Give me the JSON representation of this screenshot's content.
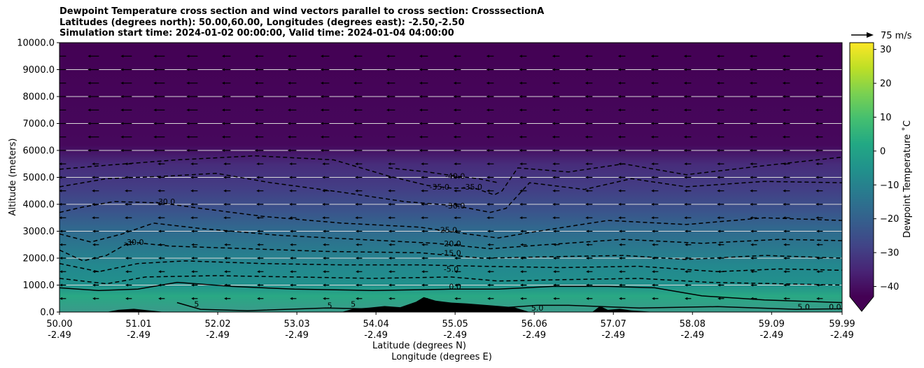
{
  "chart_data": {
    "type": "heatmap",
    "title_lines": [
      "Dewpoint Temperature cross section and wind vectors parallel to cross section: CrosssectionA",
      "Latitudes (degrees north): 50.00,60.00, Longitudes (degrees east): -2.50,-2.50",
      "Simulation start time: 2024-01-02 00:00:00, Valid time: 2024-01-04 04:00:00"
    ],
    "ylabel": "Altitude (meters)",
    "xlabel": "Latitude (degrees N)",
    "xlabel2": "Longitude (degrees E)",
    "ylim": [
      0,
      10000
    ],
    "y_ticks": [
      "0.0",
      "1000.0",
      "2000.0",
      "3000.0",
      "4000.0",
      "5000.0",
      "6000.0",
      "7000.0",
      "8000.0",
      "9000.0",
      "10000.0"
    ],
    "x_ticks": [
      {
        "lat": "50.00",
        "lon": "-2.49"
      },
      {
        "lat": "51.01",
        "lon": "-2.49"
      },
      {
        "lat": "52.02",
        "lon": "-2.49"
      },
      {
        "lat": "53.03",
        "lon": "-2.49"
      },
      {
        "lat": "54.04",
        "lon": "-2.49"
      },
      {
        "lat": "55.05",
        "lon": "-2.49"
      },
      {
        "lat": "56.06",
        "lon": "-2.49"
      },
      {
        "lat": "57.07",
        "lon": "-2.49"
      },
      {
        "lat": "58.08",
        "lon": "-2.49"
      },
      {
        "lat": "59.09",
        "lon": "-2.49"
      },
      {
        "lat": "59.99",
        "lon": "-2.49"
      }
    ],
    "grid": "horizontal",
    "colorbar": {
      "label": "Dewpoint Temperature $^\\circ$C",
      "label_display": "Dewpoint Temperature ˚C",
      "range": [
        -43,
        32
      ],
      "ticks": [
        "30",
        "20",
        "10",
        "0",
        "−10",
        "−20",
        "−30",
        "−40"
      ],
      "colormap": "viridis",
      "extend": "min"
    },
    "quiver_key": "75 m/s",
    "contour_labels": [
      {
        "text": "-40.0",
        "lat": 55.05,
        "alt": 5050
      },
      {
        "text": "-35.0",
        "lat": 54.85,
        "alt": 4650
      },
      {
        "text": "-35.0",
        "lat": 55.27,
        "alt": 4650
      },
      {
        "text": "-30.0",
        "lat": 51.35,
        "alt": 4100
      },
      {
        "text": "-30.0",
        "lat": 55.05,
        "alt": 3950
      },
      {
        "text": "-25.0",
        "lat": 54.95,
        "alt": 3050
      },
      {
        "text": "-30.0",
        "lat": 50.95,
        "alt": 2600
      },
      {
        "text": "-20.0",
        "lat": 55.0,
        "alt": 2550
      },
      {
        "text": "-15.0",
        "lat": 55.0,
        "alt": 2200
      },
      {
        "text": "-5.0",
        "lat": 55.0,
        "alt": 1600
      },
      {
        "text": "0.0",
        "lat": 55.05,
        "alt": 950
      },
      {
        "text": "5",
        "lat": 51.75,
        "alt": 300
      },
      {
        "text": "5",
        "lat": 53.45,
        "alt": 250
      },
      {
        "text": "5",
        "lat": 53.75,
        "alt": 300
      },
      {
        "text": "5.0",
        "lat": 56.1,
        "alt": 150
      },
      {
        "text": "5.0",
        "lat": 59.5,
        "alt": 200
      },
      {
        "text": "0.0",
        "lat": 59.9,
        "alt": 200
      }
    ],
    "contour_levels": [
      {
        "level": -40,
        "style": "dashed",
        "points": [
          [
            54.2,
            5350
          ],
          [
            54.7,
            5200
          ],
          [
            55.05,
            5050
          ],
          [
            55.35,
            4950
          ],
          [
            55.6,
            4800
          ]
        ]
      },
      {
        "level": -35,
        "style": "dashed",
        "points": [
          [
            50.0,
            5300
          ],
          [
            50.6,
            5450
          ],
          [
            51.5,
            5650
          ],
          [
            52.5,
            5800
          ],
          [
            53.5,
            5650
          ],
          [
            54.2,
            5050
          ],
          [
            54.7,
            4700
          ],
          [
            55.0,
            4600
          ],
          [
            55.3,
            4600
          ],
          [
            55.55,
            4350
          ],
          [
            55.65,
            4500
          ],
          [
            55.85,
            5350
          ],
          [
            56.5,
            5200
          ],
          [
            57.2,
            5500
          ],
          [
            58.0,
            5100
          ],
          [
            58.6,
            5300
          ],
          [
            59.2,
            5500
          ],
          [
            59.99,
            5750
          ]
        ]
      },
      {
        "level": -30,
        "style": "dashed",
        "points": [
          [
            50.0,
            4650
          ],
          [
            50.6,
            4950
          ],
          [
            51.4,
            5050
          ],
          [
            52.0,
            5150
          ],
          [
            52.7,
            4800
          ],
          [
            53.6,
            4450
          ],
          [
            54.4,
            4100
          ],
          [
            55.05,
            3950
          ],
          [
            55.5,
            3700
          ],
          [
            55.7,
            3850
          ],
          [
            56.0,
            4800
          ],
          [
            56.7,
            4550
          ],
          [
            57.3,
            4950
          ],
          [
            58.0,
            4650
          ],
          [
            59.0,
            4850
          ],
          [
            59.99,
            4800
          ]
        ]
      },
      {
        "level": -25,
        "style": "dashed",
        "points": [
          [
            50.0,
            3700
          ],
          [
            50.3,
            3900
          ],
          [
            50.7,
            4100
          ],
          [
            51.3,
            4050
          ],
          [
            51.8,
            3850
          ],
          [
            52.6,
            3550
          ],
          [
            53.6,
            3300
          ],
          [
            54.6,
            3150
          ],
          [
            55.2,
            2900
          ],
          [
            55.6,
            2750
          ],
          [
            56.0,
            2950
          ],
          [
            57.0,
            3400
          ],
          [
            58.0,
            3250
          ],
          [
            59.0,
            3500
          ],
          [
            59.99,
            3400
          ]
        ]
      },
      {
        "level": -20,
        "style": "dashed",
        "points": [
          [
            50.0,
            2900
          ],
          [
            50.4,
            2600
          ],
          [
            50.8,
            2900
          ],
          [
            51.2,
            3300
          ],
          [
            51.8,
            3100
          ],
          [
            52.8,
            2850
          ],
          [
            53.8,
            2700
          ],
          [
            54.8,
            2550
          ],
          [
            55.5,
            2350
          ],
          [
            56.2,
            2500
          ],
          [
            57.2,
            2700
          ],
          [
            58.2,
            2550
          ],
          [
            59.2,
            2700
          ],
          [
            59.99,
            2650
          ]
        ]
      },
      {
        "level": -15,
        "style": "dashed",
        "points": [
          [
            50.0,
            2300
          ],
          [
            50.3,
            1900
          ],
          [
            50.6,
            2100
          ],
          [
            50.9,
            2600
          ],
          [
            51.4,
            2450
          ],
          [
            52.4,
            2350
          ],
          [
            53.4,
            2250
          ],
          [
            54.6,
            2200
          ],
          [
            55.4,
            2000
          ],
          [
            56.2,
            2050
          ],
          [
            57.2,
            2100
          ],
          [
            58.0,
            1950
          ],
          [
            59.0,
            2100
          ],
          [
            59.99,
            2000
          ]
        ]
      },
      {
        "level": -10,
        "style": "dashed",
        "points": [
          [
            50.0,
            1800
          ],
          [
            50.5,
            1500
          ],
          [
            51.0,
            1800
          ],
          [
            51.6,
            1900
          ],
          [
            52.6,
            1800
          ],
          [
            53.6,
            1750
          ],
          [
            54.6,
            1750
          ],
          [
            55.4,
            1700
          ],
          [
            56.4,
            1650
          ],
          [
            57.4,
            1700
          ],
          [
            58.4,
            1500
          ],
          [
            59.2,
            1600
          ],
          [
            59.99,
            1550
          ]
        ]
      },
      {
        "level": -5,
        "style": "dashed",
        "points": [
          [
            50.0,
            1250
          ],
          [
            50.6,
            1050
          ],
          [
            51.1,
            1300
          ],
          [
            52.0,
            1350
          ],
          [
            53.0,
            1300
          ],
          [
            54.0,
            1250
          ],
          [
            55.0,
            1300
          ],
          [
            55.6,
            1150
          ],
          [
            56.4,
            1200
          ],
          [
            57.4,
            1250
          ],
          [
            58.3,
            1100
          ],
          [
            59.2,
            1050
          ],
          [
            59.99,
            1000
          ]
        ]
      },
      {
        "level": 0,
        "style": "solid",
        "points": [
          [
            50.0,
            900
          ],
          [
            50.5,
            800
          ],
          [
            51.0,
            850
          ],
          [
            51.5,
            1100
          ],
          [
            52.2,
            950
          ],
          [
            53.0,
            850
          ],
          [
            54.0,
            800
          ],
          [
            55.0,
            850
          ],
          [
            55.6,
            850
          ],
          [
            56.3,
            950
          ],
          [
            57.0,
            950
          ],
          [
            57.6,
            900
          ],
          [
            58.2,
            600
          ],
          [
            59.0,
            450
          ],
          [
            59.99,
            350
          ]
        ]
      },
      {
        "level": 5,
        "style": "solid",
        "points": [
          [
            51.5,
            350
          ],
          [
            51.8,
            100
          ],
          [
            52.4,
            50
          ],
          [
            53.4,
            150
          ],
          [
            54.2,
            100
          ],
          [
            55.6,
            150
          ],
          [
            56.1,
            250
          ],
          [
            56.5,
            250
          ],
          [
            57.4,
            150
          ],
          [
            58.4,
            200
          ],
          [
            59.4,
            100
          ],
          [
            59.99,
            120
          ]
        ]
      }
    ],
    "terrain": [
      [
        50.0,
        0
      ],
      [
        50.6,
        0
      ],
      [
        50.75,
        80
      ],
      [
        50.95,
        120
      ],
      [
        51.15,
        60
      ],
      [
        51.35,
        0
      ],
      [
        53.6,
        0
      ],
      [
        53.75,
        120
      ],
      [
        53.95,
        160
      ],
      [
        54.15,
        220
      ],
      [
        54.35,
        180
      ],
      [
        54.55,
        380
      ],
      [
        54.65,
        550
      ],
      [
        54.8,
        420
      ],
      [
        55.0,
        350
      ],
      [
        55.2,
        320
      ],
      [
        55.5,
        250
      ],
      [
        55.8,
        180
      ],
      [
        56.0,
        0
      ],
      [
        56.8,
        0
      ],
      [
        56.9,
        220
      ],
      [
        57.0,
        80
      ],
      [
        57.15,
        120
      ],
      [
        57.3,
        60
      ],
      [
        57.6,
        0
      ],
      [
        59.99,
        0
      ]
    ]
  }
}
